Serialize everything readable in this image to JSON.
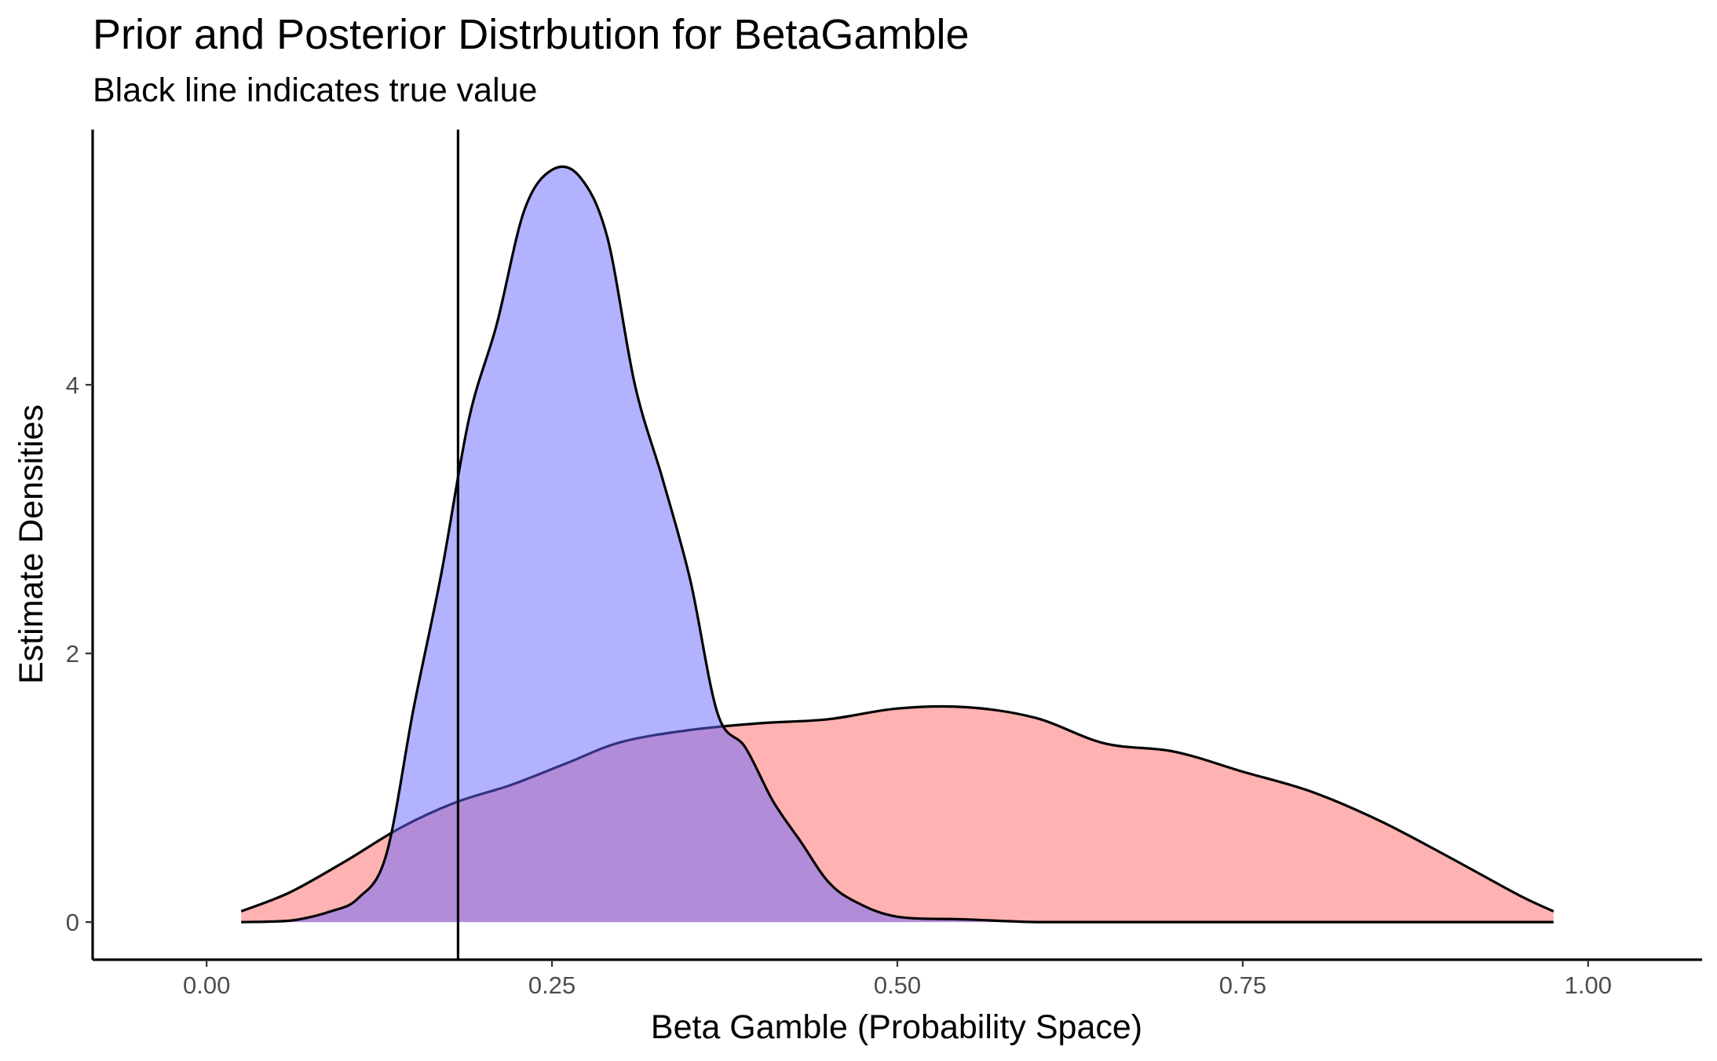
{
  "chart_data": {
    "type": "area",
    "title": "Prior and Posterior Distrbution for BetaGamble",
    "subtitle": "Black line indicates true value",
    "xlabel": "Beta Gamble (Probability Space)",
    "ylabel": "Estimate Densities",
    "xlim": [
      -0.0825,
      1.0825
    ],
    "ylim": [
      -0.28,
      5.9
    ],
    "x_ticks": [
      0.0,
      0.25,
      0.5,
      0.75,
      1.0
    ],
    "x_tick_labels": [
      "0.00",
      "0.25",
      "0.50",
      "0.75",
      "1.00"
    ],
    "y_ticks": [
      0,
      2,
      4
    ],
    "y_tick_labels": [
      "0",
      "2",
      "4"
    ],
    "grid": false,
    "legend": "none",
    "true_value": 0.182,
    "series": [
      {
        "color": "#FF6666",
        "fill_opacity": 0.5,
        "x": [
          0.025,
          0.06,
          0.1,
          0.14,
          0.18,
          0.22,
          0.26,
          0.3,
          0.35,
          0.4,
          0.45,
          0.5,
          0.55,
          0.6,
          0.65,
          0.7,
          0.75,
          0.8,
          0.85,
          0.9,
          0.95,
          0.975
        ],
        "y": [
          0.08,
          0.22,
          0.45,
          0.7,
          0.89,
          1.02,
          1.18,
          1.34,
          1.43,
          1.48,
          1.51,
          1.59,
          1.6,
          1.52,
          1.33,
          1.27,
          1.12,
          0.97,
          0.75,
          0.48,
          0.2,
          0.08
        ]
      },
      {
        "color": "#6666FF",
        "fill_opacity": 0.5,
        "x": [
          0.025,
          0.06,
          0.09,
          0.11,
          0.13,
          0.15,
          0.17,
          0.19,
          0.21,
          0.23,
          0.25,
          0.27,
          0.29,
          0.31,
          0.33,
          0.35,
          0.37,
          0.39,
          0.41,
          0.43,
          0.45,
          0.47,
          0.5,
          0.55,
          0.6,
          0.65,
          0.7,
          0.8,
          0.9,
          0.975
        ],
        "y": [
          0.0,
          0.01,
          0.08,
          0.18,
          0.5,
          1.6,
          2.6,
          3.75,
          4.45,
          5.3,
          5.6,
          5.55,
          5.1,
          4.0,
          3.3,
          2.55,
          1.55,
          1.3,
          0.9,
          0.6,
          0.3,
          0.15,
          0.04,
          0.02,
          0.0,
          0.0,
          0.0,
          0.0,
          0.0,
          0.0
        ]
      }
    ]
  }
}
